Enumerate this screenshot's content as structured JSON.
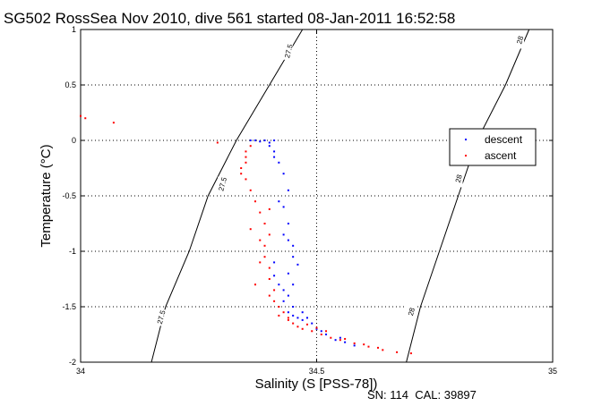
{
  "chart_data": {
    "type": "scatter",
    "title": "SG502 RossSea Nov 2010, dive 561 started 08-Jan-2011 16:52:58",
    "xlabel": "Salinity (S [PSS-78])",
    "ylabel": "Temperature (°C)",
    "footer": "SN: 114  CAL: 39897",
    "xlim": [
      34,
      35
    ],
    "ylim": [
      -2,
      1
    ],
    "x_ticks": [
      "34",
      "34.5",
      "35"
    ],
    "y_ticks": [
      "-2",
      "-1.5",
      "-1",
      "-0.5",
      "0",
      "0.5",
      "1"
    ],
    "grid": true,
    "legend_position": "right",
    "density_contours": [
      {
        "label": "27.5",
        "points": [
          [
            34.47,
            1.0
          ],
          [
            34.4,
            0.5
          ],
          [
            34.33,
            0.0
          ],
          [
            34.27,
            -0.5
          ],
          [
            34.23,
            -1.0
          ],
          [
            34.18,
            -1.5
          ],
          [
            34.15,
            -2.0
          ]
        ],
        "label_positions": [
          [
            34.44,
            0.8
          ],
          [
            34.3,
            -0.4
          ],
          [
            34.17,
            -1.6
          ]
        ]
      },
      {
        "label": "28",
        "points": [
          [
            34.95,
            1.0
          ],
          [
            34.9,
            0.5
          ],
          [
            34.84,
            0.0
          ],
          [
            34.8,
            -0.5
          ],
          [
            34.76,
            -1.0
          ],
          [
            34.72,
            -1.5
          ],
          [
            34.69,
            -2.0
          ]
        ],
        "label_positions": [
          [
            34.93,
            0.9
          ],
          [
            34.8,
            -0.35
          ],
          [
            34.7,
            -1.55
          ]
        ]
      }
    ],
    "series": [
      {
        "name": "descent",
        "color": "#0000ff",
        "marker": "dot",
        "points": [
          [
            34.36,
            0.0
          ],
          [
            34.37,
            0.0
          ],
          [
            34.38,
            -0.01
          ],
          [
            34.39,
            0.0
          ],
          [
            34.4,
            -0.02
          ],
          [
            34.41,
            0.0
          ],
          [
            34.4,
            -0.05
          ],
          [
            34.41,
            -0.1
          ],
          [
            34.41,
            -0.15
          ],
          [
            34.42,
            -0.2
          ],
          [
            34.43,
            -0.3
          ],
          [
            34.44,
            -0.45
          ],
          [
            34.43,
            -0.6
          ],
          [
            34.44,
            -0.75
          ],
          [
            34.44,
            -0.9
          ],
          [
            34.45,
            -1.05
          ],
          [
            34.44,
            -1.2
          ],
          [
            34.45,
            -1.3
          ],
          [
            34.44,
            -1.4
          ],
          [
            34.45,
            -1.5
          ],
          [
            34.44,
            -1.55
          ],
          [
            34.46,
            -1.6
          ],
          [
            34.47,
            -1.55
          ],
          [
            34.48,
            -1.6
          ],
          [
            34.49,
            -1.65
          ],
          [
            34.5,
            -1.7
          ],
          [
            34.52,
            -1.75
          ],
          [
            34.54,
            -1.8
          ],
          [
            34.56,
            -1.82
          ],
          [
            34.58,
            -1.85
          ],
          [
            34.42,
            -0.55
          ],
          [
            34.43,
            -0.85
          ],
          [
            34.41,
            -1.1
          ],
          [
            34.42,
            -1.3
          ],
          [
            34.43,
            -1.45
          ],
          [
            34.45,
            -1.58
          ],
          [
            34.47,
            -1.62
          ],
          [
            34.51,
            -1.72
          ],
          [
            34.55,
            -1.78
          ],
          [
            34.43,
            -1.35
          ],
          [
            34.41,
            -1.22
          ],
          [
            34.45,
            -0.95
          ],
          [
            34.46,
            -1.12
          ]
        ]
      },
      {
        "name": "ascent",
        "color": "#ff0000",
        "marker": "dot",
        "points": [
          [
            34.0,
            0.22
          ],
          [
            34.01,
            0.2
          ],
          [
            34.07,
            0.16
          ],
          [
            34.29,
            -0.02
          ],
          [
            34.35,
            -0.1
          ],
          [
            34.35,
            -0.15
          ],
          [
            34.35,
            -0.2
          ],
          [
            34.34,
            -0.25
          ],
          [
            34.34,
            -0.3
          ],
          [
            34.35,
            -0.35
          ],
          [
            34.36,
            -0.45
          ],
          [
            34.37,
            -0.55
          ],
          [
            34.38,
            -0.65
          ],
          [
            34.39,
            -0.75
          ],
          [
            34.4,
            -0.85
          ],
          [
            34.39,
            -0.95
          ],
          [
            34.39,
            -1.05
          ],
          [
            34.4,
            -1.15
          ],
          [
            34.4,
            -1.25
          ],
          [
            34.41,
            -1.35
          ],
          [
            34.41,
            -1.45
          ],
          [
            34.42,
            -1.5
          ],
          [
            34.43,
            -1.55
          ],
          [
            34.44,
            -1.6
          ],
          [
            34.45,
            -1.65
          ],
          [
            34.46,
            -1.68
          ],
          [
            34.47,
            -1.7
          ],
          [
            34.49,
            -1.72
          ],
          [
            34.51,
            -1.75
          ],
          [
            34.53,
            -1.78
          ],
          [
            34.55,
            -1.8
          ],
          [
            34.58,
            -1.83
          ],
          [
            34.61,
            -1.86
          ],
          [
            34.64,
            -1.89
          ],
          [
            34.67,
            -1.91
          ],
          [
            34.7,
            -1.92
          ],
          [
            34.42,
            -1.58
          ],
          [
            34.44,
            -1.62
          ],
          [
            34.48,
            -1.66
          ],
          [
            34.5,
            -1.69
          ],
          [
            34.52,
            -1.72
          ],
          [
            34.4,
            -1.4
          ],
          [
            34.38,
            -1.1
          ],
          [
            34.36,
            -0.8
          ],
          [
            34.38,
            -0.9
          ],
          [
            34.37,
            -1.3
          ],
          [
            34.4,
            -0.62
          ],
          [
            34.36,
            -0.05
          ],
          [
            34.56,
            -1.79
          ],
          [
            34.6,
            -1.84
          ],
          [
            34.63,
            -1.87
          ]
        ]
      }
    ]
  }
}
